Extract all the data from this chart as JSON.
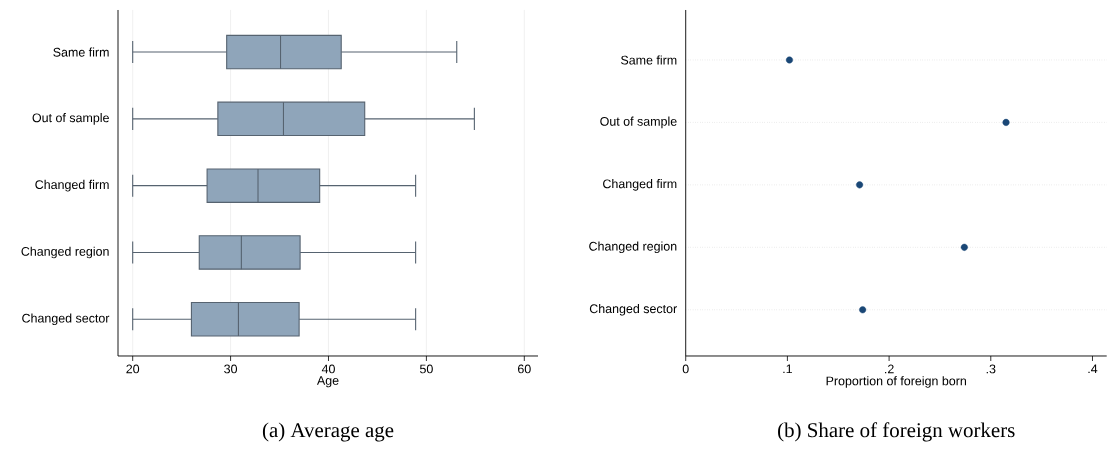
{
  "chart_data": [
    {
      "type": "box",
      "title": "(a) Average age",
      "xlabel": "Age",
      "orientation": "horizontal",
      "categories": [
        "Same firm",
        "Out of sample",
        "Changed firm",
        "Changed region",
        "Changed sector"
      ],
      "series": [
        {
          "color": "#8fa5ba",
          "boxes": [
            {
              "low": 20,
              "q1": 29.6,
              "median": 35.1,
              "q3": 41.3,
              "high": 53.1
            },
            {
              "low": 20,
              "q1": 28.7,
              "median": 35.4,
              "q3": 43.7,
              "high": 54.9
            },
            {
              "low": 20,
              "q1": 27.6,
              "median": 32.8,
              "q3": 39.1,
              "high": 48.9
            },
            {
              "low": 20,
              "q1": 26.8,
              "median": 31.1,
              "q3": 37.1,
              "high": 48.9
            },
            {
              "low": 20,
              "q1": 26.0,
              "median": 30.8,
              "q3": 37.0,
              "high": 48.9
            }
          ]
        }
      ],
      "xlim": [
        18.5,
        61.4
      ],
      "xticks": [
        20,
        30,
        40,
        50,
        60
      ],
      "grid": "x"
    },
    {
      "type": "scatter",
      "title": "(b) Share of foreign workers",
      "xlabel": "Proportion of foreign born",
      "orientation": "horizontal",
      "categories": [
        "Same firm",
        "Out of sample",
        "Changed firm",
        "Changed region",
        "Changed sector"
      ],
      "series": [
        {
          "color": "#1a4776",
          "values": [
            0.102,
            0.315,
            0.171,
            0.274,
            0.174
          ]
        }
      ],
      "xlim": [
        0,
        0.414
      ],
      "xticks": [
        0,
        {
          "value": 0.1,
          "label": ".1"
        },
        {
          "value": 0.2,
          "label": ".2"
        },
        {
          "value": 0.3,
          "label": ".3"
        },
        {
          "value": 0.4,
          "label": ".4"
        }
      ],
      "grid": "y",
      "marker": "circle"
    }
  ]
}
